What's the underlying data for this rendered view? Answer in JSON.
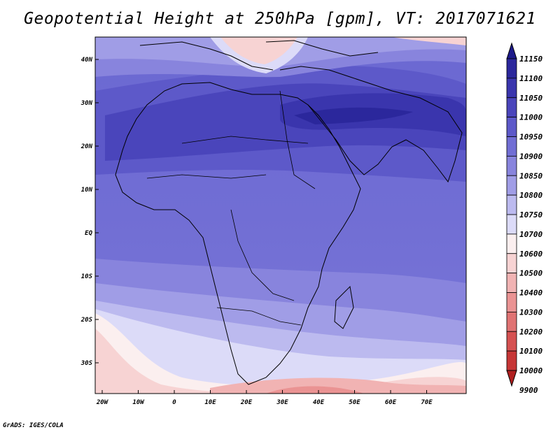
{
  "title": "Geopotential Height at 250hPa [gpm], VT: 2017071621",
  "footer": "GrADS: IGES/COLA",
  "lat_labels": [
    "40N",
    "30N",
    "20N",
    "10N",
    "EQ",
    "10S",
    "20S",
    "30S"
  ],
  "lon_labels": [
    "20W",
    "10W",
    "0",
    "10E",
    "20E",
    "30E",
    "40E",
    "50E",
    "60E",
    "70E"
  ],
  "colorbar": {
    "levels": [
      "11150",
      "11100",
      "11050",
      "11000",
      "10950",
      "10900",
      "10850",
      "10800",
      "10750",
      "10700",
      "10600",
      "10500",
      "10400",
      "10300",
      "10200",
      "10100",
      "10000",
      "9900"
    ],
    "colors": [
      "#1d1a8a",
      "#2b279c",
      "#3a35ad",
      "#4a45bb",
      "#5d59c9",
      "#716ed4",
      "#8884dd",
      "#a09de6",
      "#bcbaef",
      "#dcdbf8",
      "#fbefef",
      "#f7d3d3",
      "#f1b3b3",
      "#ea9393",
      "#e07373",
      "#d55151",
      "#c63636",
      "#b01f1f"
    ]
  }
}
